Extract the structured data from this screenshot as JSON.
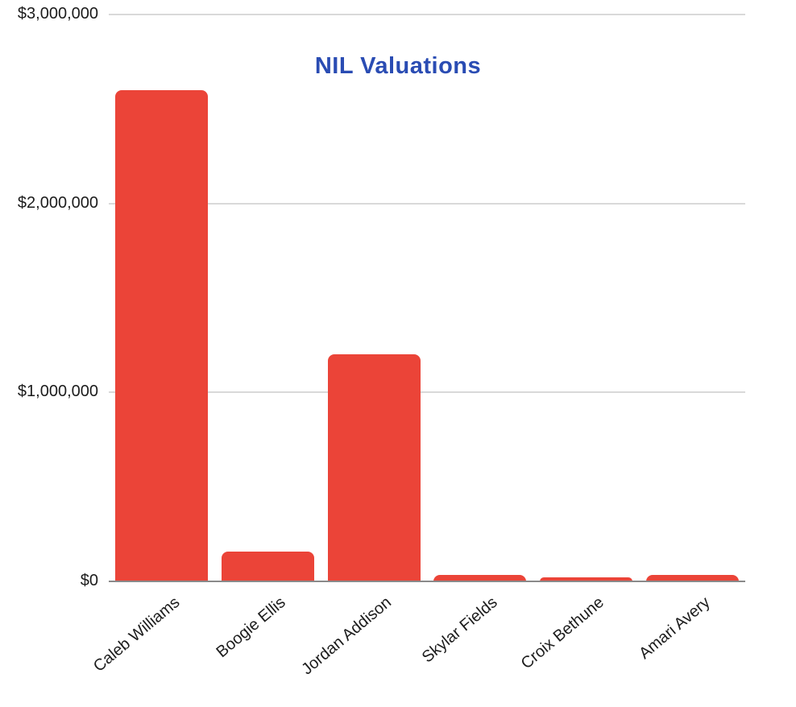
{
  "page": {
    "background": "#ffffff"
  },
  "chart_data": {
    "type": "bar",
    "title": "NIL Valuations",
    "categories": [
      "Caleb Williams",
      "Boogie Ellis",
      "Jordan Addison",
      "Skylar Fields",
      "Croix Bethune",
      "Amari Avery"
    ],
    "values": [
      2600000,
      157000,
      1200000,
      34000,
      21000,
      34000
    ],
    "xlabel": "",
    "ylabel": "",
    "ylim": [
      0,
      3000000
    ],
    "yticks": [
      {
        "value": 0,
        "label": "$0"
      },
      {
        "value": 1000000,
        "label": "$1,000,000"
      },
      {
        "value": 2000000,
        "label": "$2,000,000"
      },
      {
        "value": 3000000,
        "label": "$3,000,000"
      }
    ],
    "grid": true,
    "legend_position": "none",
    "colors": {
      "bar": "#eb4438",
      "title": "#2a4cb3",
      "gridline": "#d9d9d9",
      "axis_line": "#8a8a8a",
      "tick_text": "#1c1c1c"
    }
  }
}
